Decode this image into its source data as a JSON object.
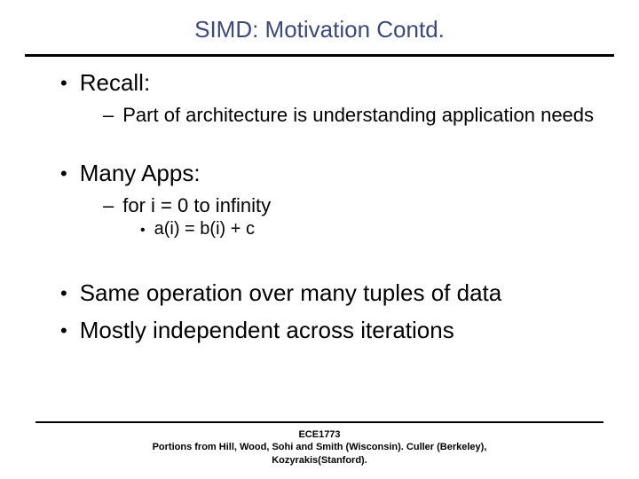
{
  "title": "SIMD: Motivation Contd.",
  "title_color": "#3b4a7a",
  "title_fontsize": 26,
  "rule_color": "#000000",
  "background_color": "#ffffff",
  "body_font": "Arial",
  "bullets": {
    "l1_fontsize": 26,
    "l2_fontsize": 22,
    "l3_fontsize": 20,
    "b1": "Recall:",
    "b1_sub1": "Part of architecture is understanding application needs",
    "b2": "Many Apps:",
    "b2_sub1": "for i = 0 to infinity",
    "b2_sub1_sub1": "a(i) = b(i) + c",
    "b3": "Same operation over many tuples of data",
    "b4": "Mostly independent across iterations"
  },
  "footer": {
    "line1": "ECE1773",
    "line2": "Portions from Hill, Wood, Sohi and Smith (Wisconsin). Culler (Berkeley), Kozyrakis(Stanford).",
    "fontsize": 11
  }
}
